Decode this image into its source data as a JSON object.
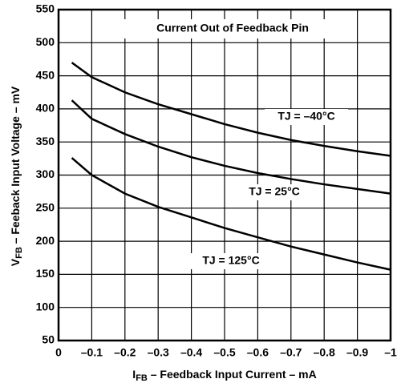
{
  "chart_data": {
    "type": "line",
    "title": "Current Out of Feedback Pin",
    "x_label": {
      "main": "I",
      "sub": "FB",
      "rest": " – Feedback Input Current – mA"
    },
    "y_label": {
      "main": "V",
      "sub": "FB",
      "rest": " – Feeback Input Voltage – mV"
    },
    "x": [
      -0.04,
      -0.1,
      -0.2,
      -0.3,
      -0.4,
      -0.5,
      -0.6,
      -0.7,
      -0.8,
      -0.9,
      -1
    ],
    "series": [
      {
        "name": "TJ = –40°C",
        "color": "#000000",
        "values": [
          470,
          448,
          425,
          407,
          392,
          377,
          364,
          353,
          344,
          336,
          329
        ]
      },
      {
        "name": "TJ = 25°C",
        "color": "#000000",
        "values": [
          413,
          385,
          362,
          343,
          327,
          314,
          303,
          294,
          286,
          279,
          272
        ]
      },
      {
        "name": "TJ = 125°C",
        "color": "#000000",
        "values": [
          326,
          300,
          272,
          252,
          236,
          220,
          206,
          192,
          180,
          168,
          157
        ]
      }
    ],
    "xlim": [
      0,
      -1
    ],
    "xticks": [
      0,
      {
        "value": -0.1,
        "label": "–0.1"
      },
      {
        "value": -0.2,
        "label": "–0.2"
      },
      {
        "value": -0.3,
        "label": "–0.3"
      },
      {
        "value": -0.4,
        "label": "–0.4"
      },
      {
        "value": -0.5,
        "label": "–0.5"
      },
      {
        "value": -0.6,
        "label": "–0.6"
      },
      {
        "value": -0.7,
        "label": "–0.7"
      },
      {
        "value": -0.8,
        "label": "–0.8"
      },
      {
        "value": -0.9,
        "label": "–0.9"
      },
      {
        "value": -1,
        "label": "–1"
      }
    ],
    "ylim": [
      50,
      550
    ],
    "yticks": [
      50,
      100,
      150,
      200,
      250,
      300,
      350,
      400,
      450,
      500,
      550
    ],
    "grid": true
  }
}
